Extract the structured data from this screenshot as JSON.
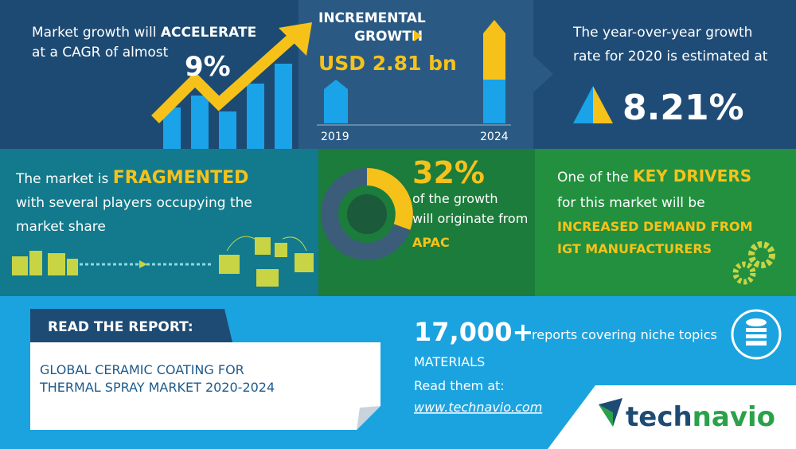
{
  "growth": {
    "text": "Market growth will",
    "highlight": "ACCELERATE",
    "text2": "at a CAGR of almost",
    "cagr": "9%"
  },
  "incremental": {
    "title": [
      "INCREMENTAL",
      "GROWTH"
    ],
    "amount": "USD 2.81 bn",
    "years": [
      "2019",
      "2024"
    ]
  },
  "yoy": {
    "text": [
      "The year-over-year growth",
      "rate for 2020 is estimated at"
    ],
    "rate": "8.21%"
  },
  "fragmented": {
    "text": "The market is",
    "highlight": "FRAGMENTED",
    "text2": [
      "with several players occupying the",
      "market share"
    ]
  },
  "region": {
    "share": "32%",
    "text": [
      "of the growth",
      "will originate from"
    ],
    "region": "APAC"
  },
  "drivers": {
    "text": "One of the",
    "highlight": "KEY DRIVERS",
    "text2": "for this market will be",
    "driver": [
      "INCREASED DEMAND FROM",
      "IGT MANUFACTURERS"
    ]
  },
  "report": {
    "label": "READ THE REPORT:",
    "title": [
      "GLOBAL CERAMIC COATING FOR",
      "THERMAL SPRAY MARKET 2020-2024"
    ]
  },
  "library": {
    "count": "17,000+",
    "text": "reports covering niche topics",
    "subject": "MATERIALS",
    "cta": "Read them at:",
    "url": "www.technavio.com"
  },
  "brand": {
    "part1": "tech",
    "part2": "navio"
  }
}
